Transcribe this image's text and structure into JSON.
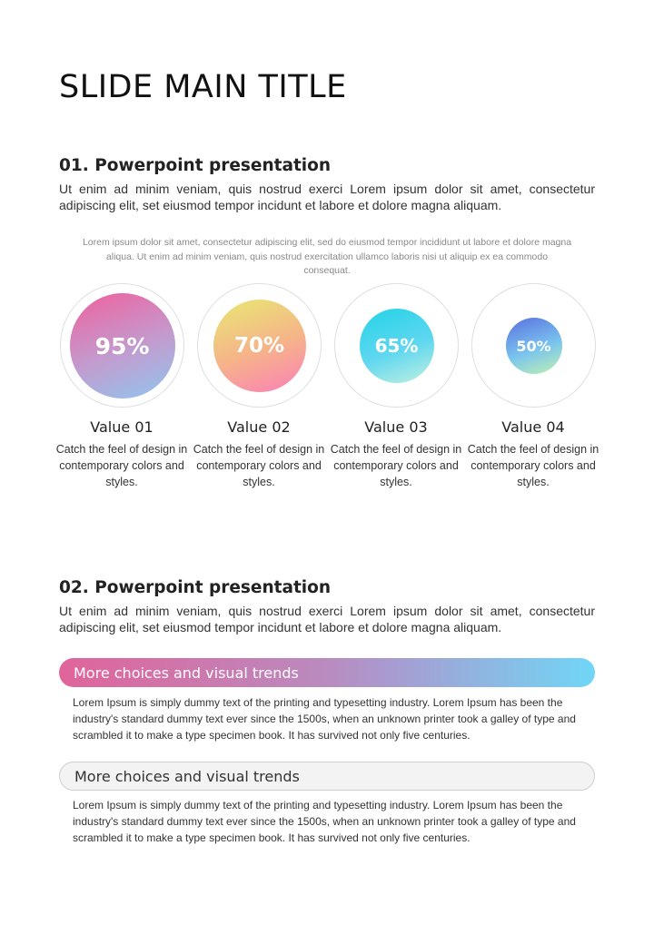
{
  "slide": {
    "title": "SLIDE MAIN TITLE"
  },
  "section1": {
    "heading": "01. Powerpoint presentation",
    "text": "Ut enim ad minim veniam, quis nostrud exerci  Lorem ipsum dolor sit amet, consectetur adipiscing elit, set eiusmod tempor incidunt et labore et dolore magna aliquam.",
    "caption": "Lorem ipsum dolor sit amet, consectetur adipiscing elit, sed do eiusmod tempor incididunt ut labore et dolore magna aliqua. Ut enim ad minim veniam, quis nostrud exercitation ullamco laboris nisi ut aliquip ex ea commodo consequat.",
    "stats": [
      {
        "value": "95%",
        "label": "Value 01",
        "desc": "Catch the feel of design in contemporary colors and styles.",
        "gradient": [
          "#f0609e",
          "#c29ccf",
          "#8fc6ee"
        ]
      },
      {
        "value": "70%",
        "label": "Value 02",
        "desc": "Catch the feel of design in contemporary colors and styles.",
        "gradient": [
          "#e8e872",
          "#f6b28a",
          "#fa7fb8"
        ]
      },
      {
        "value": "65%",
        "label": "Value 03",
        "desc": "Catch the feel of design in contemporary colors and styles.",
        "gradient": [
          "#22d3e6",
          "#5fd7f0",
          "#c2f0e0"
        ]
      },
      {
        "value": "50%",
        "label": "Value 04",
        "desc": "Catch the feel of design in contemporary colors and styles.",
        "gradient": [
          "#5a6fe0",
          "#79c3ee",
          "#c0f2b0"
        ]
      }
    ]
  },
  "section2": {
    "heading": "02. Powerpoint presentation",
    "text": "Ut enim ad minim veniam, quis nostrud exerci  Lorem ipsum dolor sit amet, consectetur adipiscing elit, set eiusmod tempor incidunt et labore et dolore magna aliquam.",
    "items": [
      {
        "title": "More choices and visual trends",
        "text": "Lorem Ipsum is simply dummy text of the printing and typesetting industry. Lorem Ipsum has been the industry's standard dummy text ever since the 1500s, when an unknown printer took a galley of type and scrambled it to make a type specimen book. It has survived not only five centuries."
      },
      {
        "title": "More choices and visual trends",
        "text": "Lorem Ipsum is simply dummy text of the printing and typesetting industry. Lorem Ipsum has been the industry's standard dummy text ever since the 1500s, when an unknown printer took a galley of type and scrambled it to make a type specimen book. It has survived not only five centuries."
      }
    ]
  }
}
